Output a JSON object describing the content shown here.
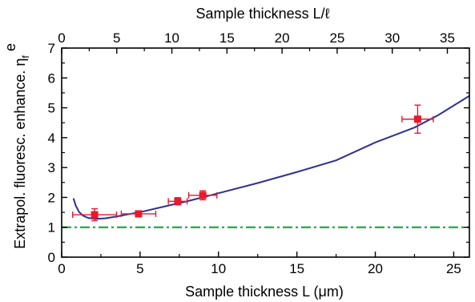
{
  "chart_data": {
    "type": "scatter",
    "xlabel": "Sample thickness L (μm)",
    "x2label": "Sample thickness L/ℓ",
    "ylabel": "Extrapol. fluoresc. enhance. η",
    "ylabel_symbol_sup": "e",
    "ylabel_symbol_sub": "f",
    "xlim": [
      0,
      26
    ],
    "ylim": [
      0,
      7
    ],
    "x2lim": [
      0,
      37
    ],
    "x_ticks": [
      "0",
      "5",
      "10",
      "15",
      "20",
      "25"
    ],
    "x2_ticks": [
      "0",
      "5",
      "10",
      "15",
      "20",
      "25",
      "30",
      "35"
    ],
    "y_ticks": [
      "0",
      "1",
      "2",
      "3",
      "4",
      "5",
      "6",
      "7"
    ],
    "series": [
      {
        "kind": "points_with_error_bars",
        "color": "#e8192c",
        "points": [
          {
            "x": 2.1,
            "y": 1.42,
            "xerr": 1.4,
            "yerr": 0.2
          },
          {
            "x": 4.9,
            "y": 1.45,
            "xerr": 1.1,
            "yerr": 0.07
          },
          {
            "x": 7.4,
            "y": 1.87,
            "xerr": 0.6,
            "yerr": 0.12
          },
          {
            "x": 9.0,
            "y": 2.07,
            "xerr": 0.9,
            "yerr": 0.15
          },
          {
            "x": 22.7,
            "y": 4.62,
            "xerr": 1.0,
            "yerr": 0.47
          }
        ]
      },
      {
        "kind": "curve",
        "color": "#2e3092",
        "x": [
          0.75,
          0.9,
          1.1,
          1.35,
          1.7,
          2.2,
          2.8,
          3.5,
          4.3,
          5.2,
          6.5,
          8,
          10,
          12.5,
          15,
          17.5,
          20,
          22.5,
          24,
          26
        ],
        "y": [
          1.97,
          1.72,
          1.52,
          1.39,
          1.31,
          1.28,
          1.3,
          1.36,
          1.44,
          1.53,
          1.69,
          1.87,
          2.14,
          2.48,
          2.85,
          3.24,
          3.84,
          4.34,
          4.75,
          5.4
        ]
      },
      {
        "kind": "reference_line",
        "style": "dash-dot",
        "color": "#1fa84a",
        "y": 1.0
      }
    ]
  }
}
